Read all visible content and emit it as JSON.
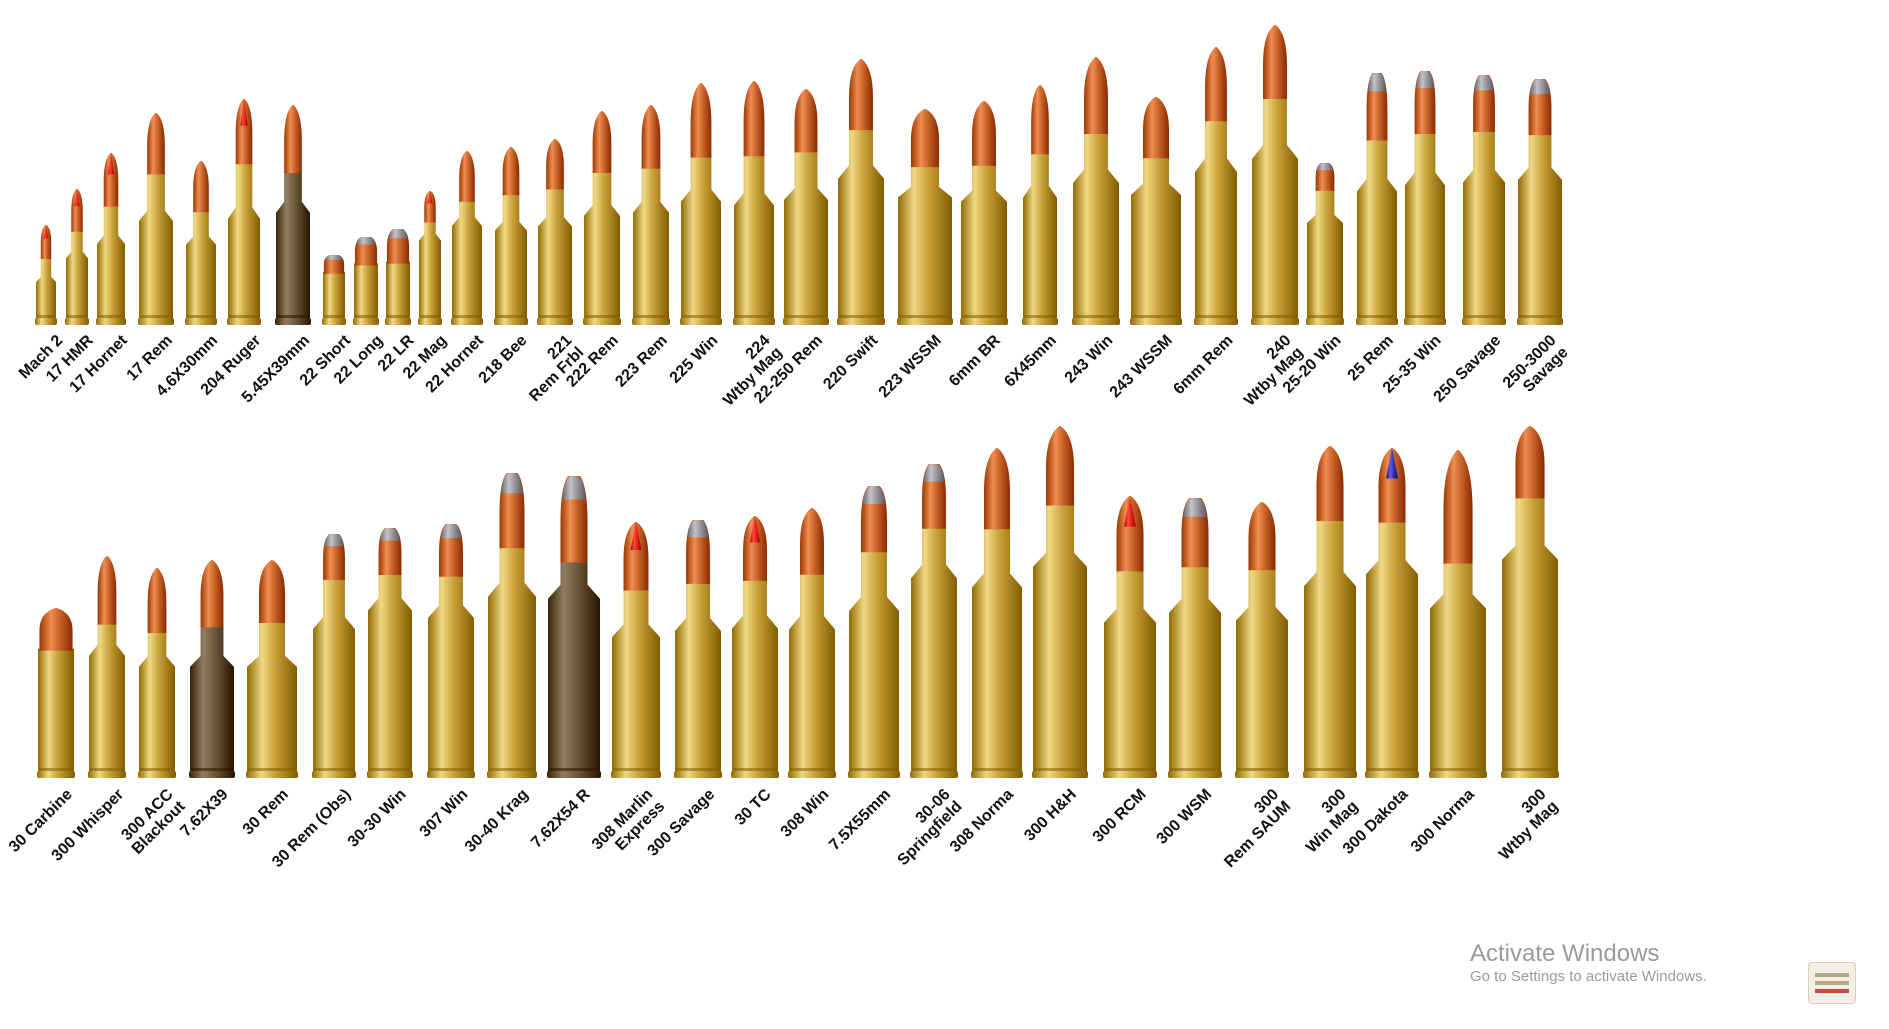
{
  "rows": [
    {
      "id": "top",
      "cartridges": [
        {
          "name": "Mach 2",
          "tip": "red-polymer",
          "case": "brass"
        },
        {
          "name": "17 HMR",
          "tip": "red-polymer",
          "case": "brass"
        },
        {
          "name": "17 Hornet",
          "tip": "red-polymer",
          "case": "brass"
        },
        {
          "name": "17 Rem",
          "tip": "copper",
          "case": "brass"
        },
        {
          "name": "4.6X30mm",
          "tip": "copper",
          "case": "brass"
        },
        {
          "name": "204 Ruger",
          "tip": "red-polymer",
          "case": "brass"
        },
        {
          "name": "5.45X39mm",
          "tip": "copper",
          "case": "steel"
        },
        {
          "name": "22 Short",
          "tip": "lead",
          "case": "brass"
        },
        {
          "name": "22 Long",
          "tip": "lead",
          "case": "brass"
        },
        {
          "name": "22 LR",
          "tip": "lead",
          "case": "brass"
        },
        {
          "name": "22 Mag",
          "tip": "red-polymer",
          "case": "brass"
        },
        {
          "name": "22 Hornet",
          "tip": "copper",
          "case": "brass"
        },
        {
          "name": "218 Bee",
          "tip": "copper",
          "case": "brass"
        },
        {
          "name": "221\nRem Frbl",
          "tip": "copper",
          "case": "brass"
        },
        {
          "name": "222 Rem",
          "tip": "copper",
          "case": "brass"
        },
        {
          "name": "223 Rem",
          "tip": "copper",
          "case": "brass"
        },
        {
          "name": "225 Win",
          "tip": "copper",
          "case": "brass"
        },
        {
          "name": "224\nWtby Mag",
          "tip": "copper",
          "case": "brass"
        },
        {
          "name": "22-250 Rem",
          "tip": "copper",
          "case": "brass"
        },
        {
          "name": "220 Swift",
          "tip": "copper",
          "case": "brass"
        },
        {
          "name": "223 WSSM",
          "tip": "copper",
          "case": "brass"
        },
        {
          "name": "6mm BR",
          "tip": "copper",
          "case": "brass"
        },
        {
          "name": "6X45mm",
          "tip": "copper",
          "case": "brass"
        },
        {
          "name": "243 Win",
          "tip": "copper",
          "case": "brass"
        },
        {
          "name": "243 WSSM",
          "tip": "copper",
          "case": "brass"
        },
        {
          "name": "6mm Rem",
          "tip": "copper",
          "case": "brass"
        },
        {
          "name": "240\nWtby Mag",
          "tip": "copper",
          "case": "brass"
        },
        {
          "name": "25-20 Win",
          "tip": "lead",
          "case": "brass"
        },
        {
          "name": "25 Rem",
          "tip": "lead",
          "case": "brass"
        },
        {
          "name": "25-35 Win",
          "tip": "lead",
          "case": "brass"
        },
        {
          "name": "250 Savage",
          "tip": "lead",
          "case": "brass"
        },
        {
          "name": "250-3000\nSavage",
          "tip": "lead",
          "case": "brass"
        }
      ]
    },
    {
      "id": "bottom",
      "cartridges": [
        {
          "name": "30 Carbine",
          "tip": "copper",
          "case": "brass"
        },
        {
          "name": "300 Whisper",
          "tip": "copper",
          "case": "brass"
        },
        {
          "name": "300 ACC\nBlackout",
          "tip": "copper",
          "case": "brass"
        },
        {
          "name": "7.62X39",
          "tip": "copper",
          "case": "steel"
        },
        {
          "name": "30 Rem",
          "tip": "copper",
          "case": "brass"
        },
        {
          "name": "30 Rem (Obs)",
          "tip": "lead",
          "case": "brass"
        },
        {
          "name": "30-30 Win",
          "tip": "lead",
          "case": "brass"
        },
        {
          "name": "307 Win",
          "tip": "lead",
          "case": "brass"
        },
        {
          "name": "30-40 Krag",
          "tip": "lead",
          "case": "brass"
        },
        {
          "name": "7.62X54 R",
          "tip": "lead",
          "case": "steel"
        },
        {
          "name": "308 Marlin\nExpress",
          "tip": "red-polymer",
          "case": "brass"
        },
        {
          "name": "300 Savage",
          "tip": "lead",
          "case": "brass"
        },
        {
          "name": "30 TC",
          "tip": "red-polymer",
          "case": "brass"
        },
        {
          "name": "308 Win",
          "tip": "copper",
          "case": "brass"
        },
        {
          "name": "7.5X55mm",
          "tip": "lead",
          "case": "brass"
        },
        {
          "name": "30-06\nSpringfield",
          "tip": "lead",
          "case": "brass"
        },
        {
          "name": "308 Norma",
          "tip": "copper",
          "case": "brass"
        },
        {
          "name": "300 H&H",
          "tip": "copper",
          "case": "brass"
        },
        {
          "name": "300 RCM",
          "tip": "red-polymer",
          "case": "brass"
        },
        {
          "name": "300 WSM",
          "tip": "lead",
          "case": "brass"
        },
        {
          "name": "300\nRem SAUM",
          "tip": "copper",
          "case": "brass"
        },
        {
          "name": "300\nWin Mag",
          "tip": "copper",
          "case": "brass"
        },
        {
          "name": "300 Dakota",
          "tip": "blue-polymer",
          "case": "brass"
        },
        {
          "name": "300 Norma",
          "tip": "copper",
          "case": "brass"
        },
        {
          "name": "300\nWtby Mag",
          "tip": "copper",
          "case": "brass"
        }
      ]
    }
  ],
  "colors": {
    "brass": "#c9a23a",
    "brass_light": "#f0d884",
    "steel": "#6e5a3c",
    "copper": "#c8652a",
    "red-polymer": "#e2231a",
    "blue-polymer": "#3a38b8",
    "lead": "#9a9aa0",
    "label": "#111111"
  },
  "watermark": {
    "title": "Activate Windows",
    "subtitle": "Go to Settings to activate Windows."
  }
}
